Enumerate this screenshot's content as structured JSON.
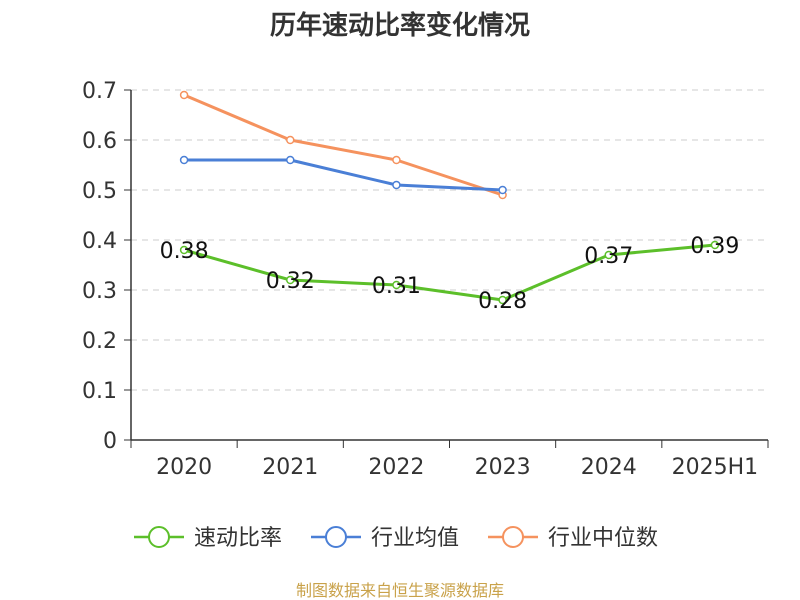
{
  "chart_data": {
    "type": "line",
    "title": "历年速动比率变化情况",
    "categories": [
      "2020",
      "2021",
      "2022",
      "2023",
      "2024",
      "2025H1"
    ],
    "ylim": [
      0,
      0.7
    ],
    "yticks": [
      "0",
      "0.1",
      "0.2",
      "0.3",
      "0.4",
      "0.5",
      "0.6",
      "0.7"
    ],
    "grid": true,
    "legend_position": "bottom",
    "series": [
      {
        "name": "速动比率",
        "color": "#5cbf2a",
        "values": [
          0.38,
          0.32,
          0.31,
          0.28,
          0.37,
          0.39
        ],
        "labels": [
          "0.38",
          "0.32",
          "0.31",
          "0.28",
          "0.37",
          "0.39"
        ]
      },
      {
        "name": "行业均值",
        "color": "#4a7fd6",
        "values": [
          0.56,
          0.56,
          0.51,
          0.5,
          null,
          null
        ]
      },
      {
        "name": "行业中位数",
        "color": "#f5925e",
        "values": [
          0.69,
          0.6,
          0.56,
          0.49,
          null,
          null
        ]
      }
    ]
  },
  "source": "制图数据来自恒生聚源数据库"
}
